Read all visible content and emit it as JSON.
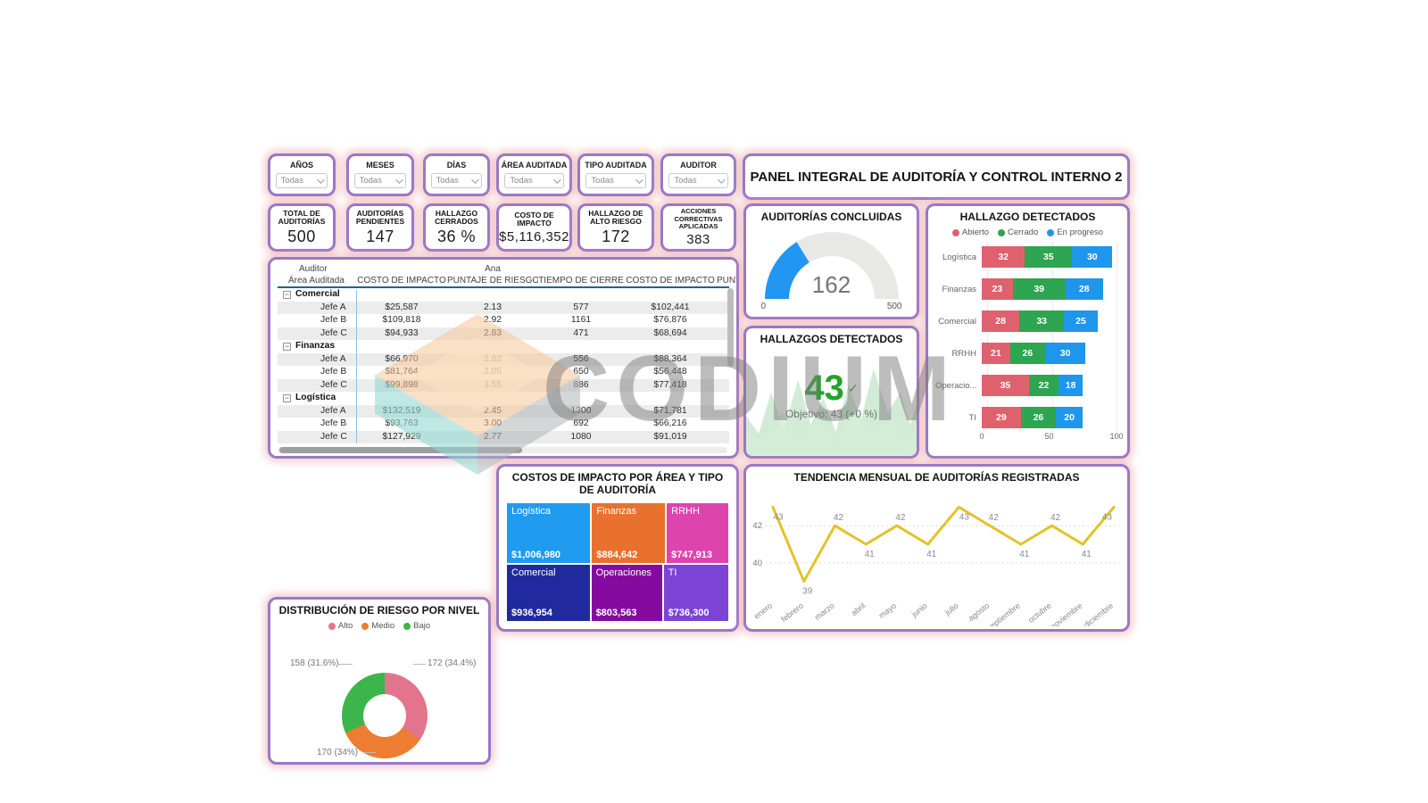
{
  "report_title": "PANEL INTEGRAL DE AUDITORÍA Y CONTROL INTERNO 2",
  "watermark": {
    "text": "CODIUM"
  },
  "icons": {
    "collapse_minus": "−",
    "check": "✓"
  },
  "filters": [
    {
      "label": "AÑOS",
      "value": "Todas"
    },
    {
      "label": "MESES",
      "value": "Todas"
    },
    {
      "label": "DÍAS",
      "value": "Todas"
    },
    {
      "label": "ÁREA AUDITADA",
      "value": "Todas"
    },
    {
      "label": "TIPO AUDITADA",
      "value": "Todas"
    },
    {
      "label": "AUDITOR",
      "value": "Todas"
    }
  ],
  "kpis": [
    {
      "label": "TOTAL DE\nAUDITORÍAS",
      "value": "500"
    },
    {
      "label": "AUDITORÍAS\nPENDIENTES",
      "value": "147"
    },
    {
      "label": "HALLAZGO\nCERRADOS",
      "value": "36 %"
    },
    {
      "label": "COSTO DE\nIMPACTO",
      "value": "$5,116,352"
    },
    {
      "label": "HALLAZGO DE\nALTO RIESGO",
      "value": "172"
    },
    {
      "label": "ACCIONES\nCORRECTIVAS\nAPLICADAS",
      "value": "383"
    }
  ],
  "matrix": {
    "row_header_line1": "Auditor",
    "row_header_line2": "Área Auditada",
    "column_group": "Ana",
    "columns": [
      "COSTO DE IMPACTO",
      "PUNTAJE DE RIESGO",
      "TIEMPO DE CIERRE",
      "COSTO DE IMPACTO",
      "PUNT"
    ],
    "groups": [
      {
        "name": "Comercial",
        "rows": [
          [
            "Jefe A",
            "$25,587",
            "2.13",
            "577",
            "$102,441"
          ],
          [
            "Jefe B",
            "$109,818",
            "2.92",
            "1161",
            "$76,876"
          ],
          [
            "Jefe C",
            "$94,933",
            "2.83",
            "471",
            "$68,694"
          ]
        ]
      },
      {
        "name": "Finanzas",
        "rows": [
          [
            "Jefe A",
            "$66,970",
            "2.82",
            "556",
            "$88,364"
          ],
          [
            "Jefe B",
            "$81,764",
            "2.05",
            "650",
            "$56,448"
          ],
          [
            "Jefe C",
            "$99,898",
            "3.55",
            "886",
            "$77,418"
          ]
        ]
      },
      {
        "name": "Logística",
        "rows": [
          [
            "Jefe A",
            "$132,519",
            "2.45",
            "1300",
            "$71,781"
          ],
          [
            "Jefe B",
            "$93,763",
            "3.00",
            "692",
            "$66,216"
          ],
          [
            "Jefe C",
            "$127,929",
            "2.77",
            "1080",
            "$91,019"
          ]
        ]
      }
    ]
  },
  "chart_data": [
    {
      "type": "gauge",
      "title": "AUDITORÍAS CONCLUIDAS",
      "value": 162,
      "min": 0,
      "max": 500,
      "fill_color": "#2196F3",
      "track_color": "#E8E8E6"
    },
    {
      "type": "kpi",
      "title": "HALLAZGOS DETECTADOS",
      "value": "43",
      "target_label": "Objetivo: 43 (+0 %)",
      "value_color": "#23A428"
    },
    {
      "type": "bar",
      "subtype": "stacked-horizontal",
      "title": "HALLAZGO DETECTADOS",
      "categories": [
        "Logística",
        "Finanzas",
        "Comercial",
        "RRHH",
        "Operacio...",
        "TI"
      ],
      "series": [
        {
          "name": "Abierto",
          "color": "#E0616E",
          "values": [
            32,
            23,
            28,
            21,
            35,
            29
          ]
        },
        {
          "name": "Cerrado",
          "color": "#2EA550",
          "values": [
            35,
            39,
            33,
            26,
            22,
            26
          ]
        },
        {
          "name": "En progreso",
          "color": "#1E96EB",
          "values": [
            30,
            28,
            25,
            30,
            18,
            20
          ]
        }
      ],
      "xlim": [
        0,
        100
      ],
      "xticks": [
        0,
        50,
        100
      ],
      "legend_position": "top"
    },
    {
      "type": "pie",
      "subtype": "donut",
      "title": "DISTRIBUCIÓN DE RIESGO POR NIVEL",
      "labels": [
        "Alto",
        "Medio",
        "Bajo"
      ],
      "values": [
        172,
        170,
        158
      ],
      "display_labels": [
        "172 (34.4%)",
        "170 (34%)",
        "158 (31.6%)"
      ],
      "colors": [
        "#E2758B",
        "#ED7D31",
        "#3CB54A"
      ],
      "legend_position": "top"
    },
    {
      "type": "treemap",
      "title": "COSTOS DE IMPACTO POR ÁREA Y TIPO DE AUDITORÍA",
      "items": [
        {
          "name": "Logística",
          "value": 1006980,
          "display": "$1,006,980",
          "color": "#1F9CF0"
        },
        {
          "name": "Finanzas",
          "value": 884642,
          "display": "$884,642",
          "color": "#E8722D"
        },
        {
          "name": "RRHH",
          "value": 747913,
          "display": "$747,913",
          "color": "#DE44AE"
        },
        {
          "name": "Comercial",
          "value": 936954,
          "display": "$936,954",
          "color": "#202A9E"
        },
        {
          "name": "Operaciones",
          "value": 803563,
          "display": "$803,563",
          "color": "#850AA0"
        },
        {
          "name": "TI",
          "value": 736300,
          "display": "$736,300",
          "color": "#7B44D4"
        }
      ],
      "rows": [
        [
          0,
          1,
          2
        ],
        [
          3,
          4,
          5
        ]
      ]
    },
    {
      "type": "line",
      "title": "TENDENCIA MENSUAL DE AUDITORÍAS REGISTRADAS",
      "x": [
        "enero",
        "febrero",
        "marzo",
        "abril",
        "mayo",
        "junio",
        "julio",
        "agosto",
        "septiembre",
        "octubre",
        "noviembre",
        "diciembre"
      ],
      "values": [
        43,
        39,
        42,
        41,
        42,
        41,
        43,
        42,
        41,
        42,
        41,
        43
      ],
      "yticks": [
        40,
        42
      ],
      "ylim": [
        38.5,
        43.5
      ],
      "color": "#E3C229",
      "grid": "dotted-horizontal"
    }
  ]
}
